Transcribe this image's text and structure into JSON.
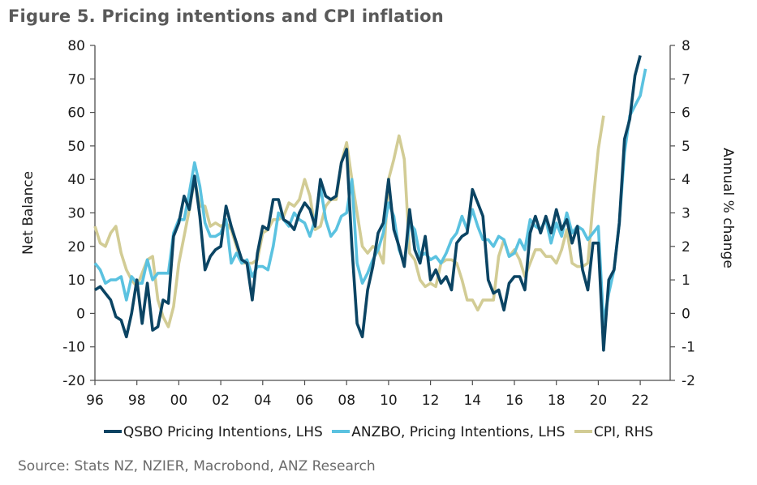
{
  "figure": {
    "title": "Figure 5.  Pricing intentions and CPI inflation",
    "source": "Source: Stats NZ, NZIER, Macrobond, ANZ Research"
  },
  "chart_data": {
    "type": "line",
    "title": "Figure 5.  Pricing intentions and CPI inflation",
    "xlabel": "",
    "ylabel": "Net Balance",
    "ylabel_right": "Annual % change",
    "x_start": 1996.0,
    "x_step": 0.25,
    "xlim": [
      1995.9,
      2024.0
    ],
    "ylim": [
      -20,
      80
    ],
    "ylim_right": [
      -2,
      8
    ],
    "x_tick_values": [
      1996,
      1998,
      2000,
      2002,
      2004,
      2006,
      2008,
      2010,
      2012,
      2014,
      2016,
      2018,
      2020,
      2022
    ],
    "x_tick_labels": [
      "96",
      "98",
      "00",
      "02",
      "04",
      "06",
      "08",
      "10",
      "12",
      "14",
      "16",
      "18",
      "20",
      "22"
    ],
    "y_ticks": [
      -20,
      -10,
      0,
      10,
      20,
      30,
      40,
      50,
      60,
      70,
      80
    ],
    "y_tick_labels": [
      "-20",
      "-10",
      "0",
      "10",
      "20",
      "30",
      "40",
      "50",
      "60",
      "70",
      "80"
    ],
    "y_ticks_right": [
      -2,
      -1,
      0,
      1,
      2,
      3,
      4,
      5,
      6,
      7,
      8
    ],
    "y_tick_labels_right": [
      "-2",
      "-1",
      "0",
      "1",
      "2",
      "3",
      "4",
      "5",
      "6",
      "7",
      "8"
    ],
    "grid": false,
    "legend_position": "bottom",
    "series": [
      {
        "name": "QSBO Pricing Intentions, LHS",
        "axis": "left",
        "color": "#0b4463",
        "values": [
          7,
          8,
          6,
          4,
          -1,
          -2,
          -7,
          0,
          10,
          -3,
          9,
          -5,
          -4,
          4,
          3,
          23,
          27,
          35,
          31,
          41,
          29,
          13,
          17,
          19,
          20,
          32,
          26,
          21,
          16,
          15,
          4,
          18,
          26,
          25,
          34,
          34,
          28,
          27,
          25,
          30,
          33,
          31,
          26,
          40,
          35,
          34,
          35,
          45,
          49,
          20,
          -3,
          -7,
          7,
          14,
          24,
          27,
          40,
          25,
          20,
          14,
          31,
          19,
          15,
          23,
          10,
          13,
          9,
          11,
          7,
          21,
          23,
          24,
          37,
          33,
          29,
          10,
          6,
          7,
          1,
          9,
          11,
          11,
          7,
          24,
          29,
          24,
          29,
          24,
          31,
          25,
          28,
          21,
          26,
          13,
          7,
          21,
          21,
          -11,
          10,
          13,
          27,
          52,
          58,
          71,
          77
        ]
      },
      {
        "name": "ANZBO, Pricing Intentions, LHS",
        "axis": "left",
        "color": "#5bc2e0",
        "values": [
          15,
          13,
          9,
          10,
          10,
          11,
          4,
          11,
          9,
          9,
          16,
          10,
          12,
          12,
          12,
          24,
          28,
          28,
          36,
          45,
          38,
          27,
          23,
          23,
          24,
          28,
          15,
          18,
          15,
          16,
          11,
          14,
          14,
          13,
          20,
          30,
          28,
          26,
          30,
          28,
          27,
          23,
          28,
          38,
          28,
          23,
          25,
          29,
          30,
          40,
          15,
          9,
          12,
          16,
          19,
          24,
          33,
          29,
          19,
          15,
          27,
          25,
          17,
          18,
          16,
          17,
          15,
          18,
          22,
          24,
          29,
          25,
          31,
          26,
          22,
          22,
          20,
          23,
          22,
          17,
          18,
          22,
          19,
          28,
          26,
          25,
          28,
          21,
          27,
          23,
          30,
          24,
          26,
          25,
          22,
          24,
          26,
          -3,
          6,
          13,
          27,
          48,
          59,
          62,
          65,
          73
        ]
      },
      {
        "name": "CPI, RHS",
        "axis": "right",
        "color": "#d2cc95",
        "values": [
          2.6,
          2.1,
          2.0,
          2.4,
          2.6,
          1.8,
          1.3,
          1.0,
          0.8,
          1.2,
          1.6,
          1.7,
          0.4,
          -0.1,
          -0.4,
          0.2,
          1.5,
          2.3,
          3.1,
          4.0,
          3.2,
          3.2,
          2.6,
          2.7,
          2.6,
          2.7,
          2.5,
          2.0,
          1.5,
          1.5,
          1.5,
          1.6,
          2.4,
          2.5,
          2.8,
          2.8,
          2.9,
          3.3,
          3.2,
          3.4,
          4.0,
          3.5,
          2.5,
          2.6,
          3.2,
          3.4,
          3.4,
          4.5,
          5.1,
          4.0,
          3.0,
          2.0,
          1.8,
          2.0,
          1.9,
          1.5,
          4.0,
          4.6,
          5.3,
          4.6,
          1.8,
          1.6,
          1.0,
          0.8,
          0.9,
          0.8,
          1.5,
          1.6,
          1.6,
          1.5,
          1.0,
          0.4,
          0.4,
          0.1,
          0.4,
          0.4,
          0.4,
          1.7,
          2.2,
          1.7,
          1.9,
          1.6,
          1.1,
          1.5,
          1.9,
          1.9,
          1.7,
          1.7,
          1.5,
          1.9,
          2.5,
          1.5,
          1.4,
          1.4,
          1.5,
          3.3,
          4.9,
          5.9
        ]
      }
    ]
  }
}
